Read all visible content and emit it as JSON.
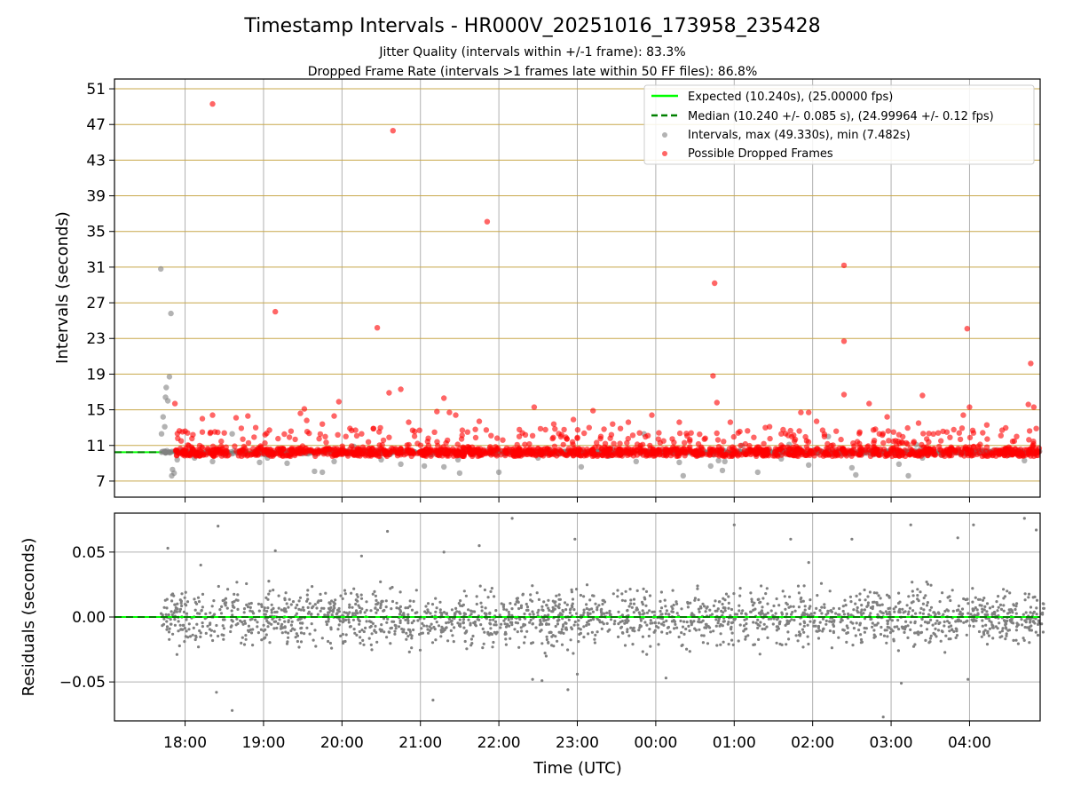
{
  "chart_data": [
    {
      "type": "scatter",
      "panel": "top",
      "title": "Timestamp Intervals - HR000V_20251016_173958_235428",
      "subtitle_1": "Jitter Quality (intervals within +/-1 frame): 83.3%",
      "subtitle_2": "Dropped Frame Rate (intervals >1 frames late within 50 FF files): 86.8%",
      "ylabel": "Intervals (seconds)",
      "xlabel": "",
      "ylim": [
        5.2,
        52.1
      ],
      "yticks": [
        "51",
        "47",
        "43",
        "39",
        "35",
        "31",
        "27",
        "23",
        "19",
        "15",
        "11",
        "7"
      ],
      "x_unit": "hours since 17:00 UTC",
      "xlim": [
        0.1,
        11.9
      ],
      "xticks": [
        "18:00",
        "19:00",
        "20:00",
        "21:00",
        "22:00",
        "23:00",
        "00:00",
        "01:00",
        "02:00",
        "03:00",
        "04:00"
      ],
      "legend": {
        "position": "upper-right",
        "entries": [
          "Expected (10.240s), (25.00000 fps)",
          "Median (10.240 +/- 0.085 s), (24.99964 +/- 0.12 fps)",
          "Intervals, max (49.330s), min (7.482s)",
          "Possible Dropped Frames"
        ]
      },
      "expected_line": 10.24,
      "median_line": 10.24,
      "series": [
        {
          "name": "Intervals",
          "color": "#808080",
          "note": "dense cluster of ~1200 points near 10.24 s between 17:40 and 04:55",
          "points": [
            [
              0.69,
              30.8
            ],
            [
              0.82,
              25.8
            ],
            [
              0.8,
              18.7
            ],
            [
              0.78,
              16.0
            ],
            [
              0.75,
              16.4
            ],
            [
              0.72,
              14.2
            ],
            [
              0.74,
              13.1
            ],
            [
              0.7,
              12.3
            ],
            [
              0.76,
              17.5
            ],
            [
              0.83,
              7.6
            ],
            [
              0.86,
              7.9
            ],
            [
              0.84,
              8.3
            ],
            [
              0.9,
              9.4
            ],
            [
              1.12,
              9.6
            ],
            [
              1.35,
              9.2
            ],
            [
              1.6,
              12.3
            ],
            [
              1.95,
              9.1
            ],
            [
              2.05,
              9.6
            ],
            [
              2.3,
              9.0
            ],
            [
              2.65,
              8.1
            ],
            [
              2.9,
              9.2
            ],
            [
              2.75,
              8.0
            ],
            [
              3.15,
              10.9
            ],
            [
              3.5,
              9.4
            ],
            [
              3.75,
              8.9
            ],
            [
              4.05,
              8.7
            ],
            [
              4.3,
              8.6
            ],
            [
              4.5,
              7.9
            ],
            [
              4.48,
              9.4
            ],
            [
              5.0,
              8.0
            ],
            [
              5.5,
              9.6
            ],
            [
              6.05,
              8.6
            ],
            [
              6.45,
              10.6
            ],
            [
              6.4,
              9.8
            ],
            [
              6.85,
              12.3
            ],
            [
              6.75,
              9.2
            ],
            [
              7.2,
              10.4
            ],
            [
              7.3,
              9.1
            ],
            [
              7.35,
              7.6
            ],
            [
              7.7,
              8.7
            ],
            [
              7.8,
              9.3
            ],
            [
              7.88,
              9.2
            ],
            [
              7.85,
              8.2
            ],
            [
              8.1,
              11.0
            ],
            [
              8.3,
              8.0
            ],
            [
              8.6,
              9.5
            ],
            [
              8.7,
              11.1
            ],
            [
              8.95,
              8.8
            ],
            [
              9.2,
              12.0
            ],
            [
              9.5,
              8.5
            ],
            [
              9.55,
              7.7
            ],
            [
              9.8,
              10.5
            ],
            [
              10.1,
              8.9
            ],
            [
              10.22,
              7.6
            ],
            [
              10.32,
              11.1
            ],
            [
              10.38,
              10.7
            ],
            [
              10.4,
              9.6
            ],
            [
              10.65,
              9.9
            ],
            [
              10.85,
              10.2
            ],
            [
              11.35,
              10.5
            ],
            [
              11.7,
              9.3
            ],
            [
              11.5,
              9.9
            ]
          ]
        },
        {
          "name": "Possible Dropped Frames",
          "color": "#ff0000",
          "note": "many points packed along 10.24 s plus excursions above",
          "points": [
            [
              1.35,
              49.3
            ],
            [
              3.65,
              46.3
            ],
            [
              4.85,
              36.1
            ],
            [
              9.4,
              31.2
            ],
            [
              7.75,
              29.2
            ],
            [
              2.15,
              26.0
            ],
            [
              3.45,
              24.2
            ],
            [
              10.97,
              24.1
            ],
            [
              9.4,
              22.7
            ],
            [
              7.73,
              18.8
            ],
            [
              11.78,
              20.2
            ],
            [
              4.3,
              16.3
            ],
            [
              3.75,
              17.3
            ],
            [
              3.6,
              16.9
            ],
            [
              9.4,
              16.7
            ],
            [
              10.4,
              16.6
            ],
            [
              7.78,
              15.8
            ],
            [
              9.72,
              15.7
            ],
            [
              2.96,
              15.9
            ],
            [
              0.87,
              15.7
            ],
            [
              11.75,
              15.6
            ],
            [
              11.82,
              15.3
            ],
            [
              11.0,
              15.3
            ],
            [
              5.45,
              15.3
            ],
            [
              6.2,
              14.9
            ],
            [
              8.95,
              14.7
            ],
            [
              8.85,
              14.7
            ],
            [
              6.95,
              14.4
            ],
            [
              10.92,
              14.4
            ],
            [
              4.45,
              14.4
            ],
            [
              4.37,
              14.7
            ],
            [
              4.21,
              14.8
            ],
            [
              2.52,
              15.1
            ],
            [
              2.47,
              14.6
            ],
            [
              2.9,
              14.3
            ],
            [
              1.35,
              14.4
            ],
            [
              1.22,
              14.0
            ],
            [
              1.65,
              14.1
            ],
            [
              1.8,
              14.3
            ],
            [
              4.75,
              13.7
            ],
            [
              5.7,
              13.4
            ],
            [
              6.65,
              13.6
            ],
            [
              6.45,
              13.4
            ],
            [
              7.3,
              13.6
            ],
            [
              7.95,
              13.6
            ],
            [
              8.45,
              13.1
            ],
            [
              9.05,
              13.7
            ],
            [
              9.6,
              12.5
            ],
            [
              9.95,
              14.2
            ],
            [
              10.35,
              13.5
            ],
            [
              11.85,
              12.9
            ],
            [
              11.22,
              13.3
            ],
            [
              3.85,
              13.6
            ],
            [
              3.9,
              12.7
            ],
            [
              2.55,
              13.8
            ],
            [
              2.75,
              13.4
            ],
            [
              2.35,
              12.6
            ],
            [
              2.02,
              12.2
            ],
            [
              1.9,
              13.0
            ],
            [
              1.5,
              12.4
            ],
            [
              1.0,
              12.6
            ],
            [
              1.1,
              12.2
            ],
            [
              0.95,
              11.5
            ],
            [
              3.05,
              12.0
            ],
            [
              3.25,
              12.3
            ],
            [
              3.6,
              11.9
            ],
            [
              4.1,
              11.8
            ],
            [
              4.6,
              12.5
            ],
            [
              4.9,
              12.1
            ],
            [
              5.05,
              11.6
            ],
            [
              5.3,
              12.4
            ],
            [
              5.8,
              12.2
            ],
            [
              6.0,
              11.8
            ],
            [
              6.3,
              12.0
            ],
            [
              6.9,
              12.1
            ],
            [
              7.1,
              11.5
            ],
            [
              7.45,
              12.4
            ],
            [
              7.62,
              11.7
            ],
            [
              8.05,
              12.4
            ],
            [
              8.25,
              11.9
            ],
            [
              8.6,
              12.3
            ],
            [
              9.15,
              12.0
            ],
            [
              9.3,
              12.6
            ],
            [
              9.85,
              12.3
            ],
            [
              10.1,
              12.2
            ],
            [
              10.6,
              12.4
            ],
            [
              10.75,
              11.9
            ],
            [
              11.05,
              12.4
            ],
            [
              11.4,
              12.1
            ],
            [
              11.6,
              12.0
            ],
            [
              5.95,
              13.9
            ],
            [
              6.55,
              12.9
            ],
            [
              6.15,
              13.0
            ],
            [
              4.7,
              12.8
            ],
            [
              3.4,
              12.9
            ]
          ]
        },
        {
          "name": "Expected",
          "color": "#00ff00",
          "style": "solid",
          "value": 10.24
        },
        {
          "name": "Median",
          "color": "#008000",
          "style": "dashed",
          "value": 10.24
        }
      ]
    },
    {
      "type": "scatter",
      "panel": "bottom",
      "ylabel": "Residuals (seconds)",
      "xlabel": "Time (UTC)",
      "ylim": [
        -0.08,
        0.08
      ],
      "yticks": [
        "0.05",
        "0.00",
        "−0.05"
      ],
      "x_unit": "hours since 17:00 UTC",
      "xlim": [
        0.1,
        11.9
      ],
      "xticks": [
        "18:00",
        "19:00",
        "20:00",
        "21:00",
        "22:00",
        "23:00",
        "00:00",
        "01:00",
        "02:00",
        "03:00",
        "04:00"
      ],
      "series": [
        {
          "name": "Residuals",
          "color": "#808080",
          "note": "about 2000 points between 17:40 and 04:55, roughly normal around 0 with sd about 0.015 s",
          "outliers": [
            [
              0.78,
              0.053
            ],
            [
              1.42,
              0.07
            ],
            [
              1.4,
              -0.058
            ],
            [
              1.6,
              -0.072
            ],
            [
              2.15,
              0.051
            ],
            [
              3.58,
              0.066
            ],
            [
              4.16,
              -0.064
            ],
            [
              4.3,
              0.05
            ],
            [
              4.75,
              0.055
            ],
            [
              5.17,
              0.076
            ],
            [
              5.43,
              -0.048
            ],
            [
              5.55,
              -0.049
            ],
            [
              5.97,
              0.06
            ],
            [
              5.88,
              -0.056
            ],
            [
              6.0,
              -0.044
            ],
            [
              7.13,
              -0.047
            ],
            [
              8.0,
              0.071
            ],
            [
              8.72,
              0.06
            ],
            [
              9.5,
              0.06
            ],
            [
              9.9,
              -0.077
            ],
            [
              10.13,
              -0.051
            ],
            [
              10.25,
              0.071
            ],
            [
              11.05,
              0.071
            ],
            [
              10.98,
              -0.048
            ],
            [
              11.7,
              0.076
            ],
            [
              11.85,
              0.067
            ],
            [
              10.85,
              0.061
            ],
            [
              1.2,
              0.04
            ],
            [
              3.25,
              0.047
            ],
            [
              8.95,
              0.042
            ]
          ],
          "band": {
            "x_start": 0.68,
            "x_end": 11.95,
            "center": 0.0,
            "spread": 0.015
          }
        },
        {
          "name": "Zero line",
          "color": "#00c000",
          "style": "dashed",
          "value": 0.0
        }
      ]
    }
  ]
}
